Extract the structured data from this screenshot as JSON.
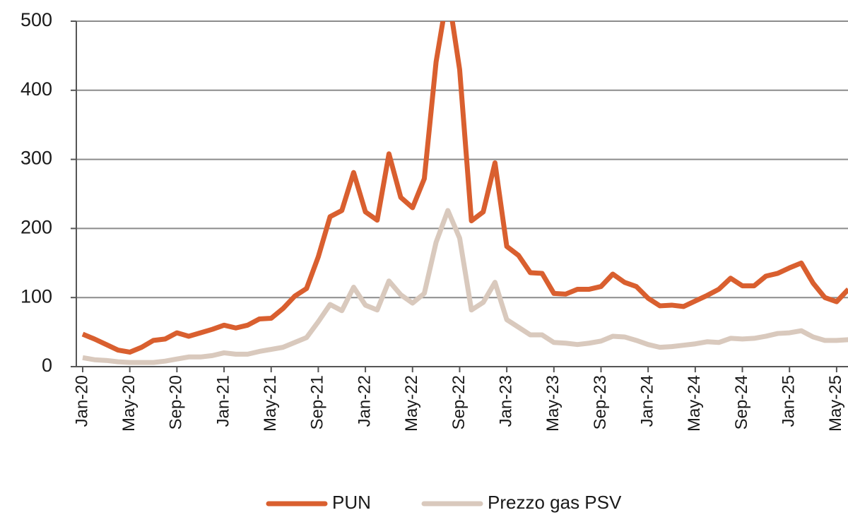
{
  "chart_data": {
    "type": "line",
    "categories": [
      "Jan-20",
      null,
      null,
      null,
      "May-20",
      null,
      null,
      null,
      "Sep-20",
      null,
      null,
      null,
      "Jan-21",
      null,
      null,
      null,
      "May-21",
      null,
      null,
      null,
      "Sep-21",
      null,
      null,
      null,
      "Jan-22",
      null,
      null,
      null,
      "May-22",
      null,
      null,
      null,
      "Sep-22",
      null,
      null,
      null,
      "Jan-23",
      null,
      null,
      null,
      "May-23",
      null,
      null,
      null,
      "Sep-23",
      null,
      null,
      null,
      "Jan-24",
      null,
      null,
      null,
      "May-24",
      null,
      null,
      null,
      "Sep-24",
      null,
      null,
      null,
      "Jan-25",
      null,
      null,
      null,
      "May-25",
      null
    ],
    "series": [
      {
        "name": "PUN",
        "color": "#d95f2f",
        "values": [
          47,
          40,
          32,
          24,
          21,
          28,
          38,
          40,
          49,
          44,
          49,
          54,
          60,
          56,
          60,
          69,
          70,
          84,
          102,
          113,
          159,
          217,
          226,
          281,
          224,
          212,
          308,
          245,
          230,
          272,
          441,
          543,
          430,
          211,
          224,
          295,
          174,
          161,
          136,
          135,
          106,
          105,
          112,
          112,
          116,
          134,
          122,
          116,
          99,
          88,
          89,
          87,
          95,
          103,
          112,
          128,
          117,
          117,
          131,
          135,
          143,
          150,
          121,
          100,
          94,
          112
        ]
      },
      {
        "name": "Prezzo gas PSV",
        "color": "#d9c9bd",
        "values": [
          13,
          10,
          9,
          7,
          6,
          6,
          6,
          8,
          11,
          14,
          14,
          16,
          20,
          18,
          18,
          22,
          25,
          28,
          35,
          42,
          65,
          90,
          81,
          115,
          89,
          82,
          124,
          104,
          92,
          106,
          180,
          226,
          186,
          82,
          93,
          122,
          68,
          57,
          46,
          46,
          35,
          34,
          32,
          34,
          37,
          44,
          43,
          38,
          32,
          28,
          29,
          31,
          33,
          36,
          35,
          41,
          40,
          41,
          44,
          48,
          49,
          52,
          43,
          38,
          38,
          39
        ]
      }
    ],
    "ylim": [
      0,
      500
    ],
    "yticks": [
      0,
      100,
      200,
      300,
      400,
      500
    ],
    "grid": true
  }
}
